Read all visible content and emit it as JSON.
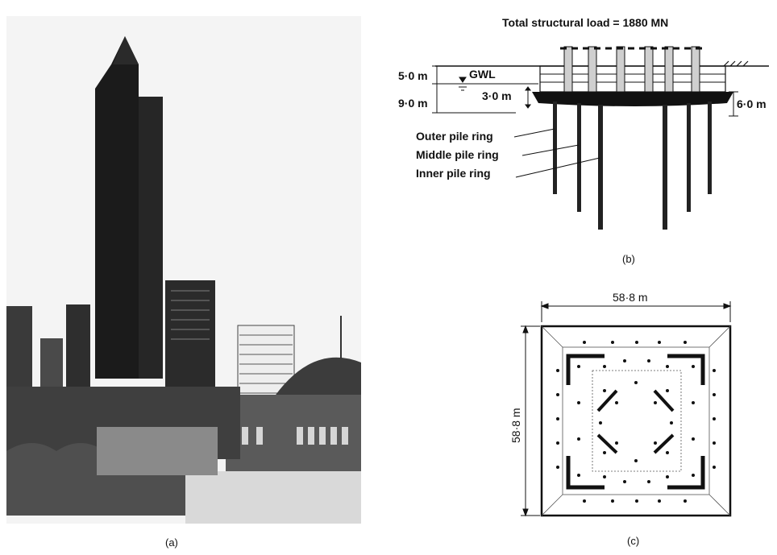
{
  "panels": {
    "a": {
      "caption": "(a)"
    },
    "b": {
      "caption": "(b)",
      "title": "Total structural load = 1880 MN",
      "labels": {
        "depth_top": "5·0 m",
        "depth_raft": "9·0 m",
        "gwl": "GWL",
        "raft_thickness": "3·0 m",
        "raft_edge": "6·0 m",
        "outer_ring": "Outer pile ring",
        "middle_ring": "Middle pile ring",
        "inner_ring": "Inner pile ring"
      }
    },
    "c": {
      "caption": "(c)",
      "width_label": "58·8 m",
      "height_label": "58·8 m"
    }
  }
}
